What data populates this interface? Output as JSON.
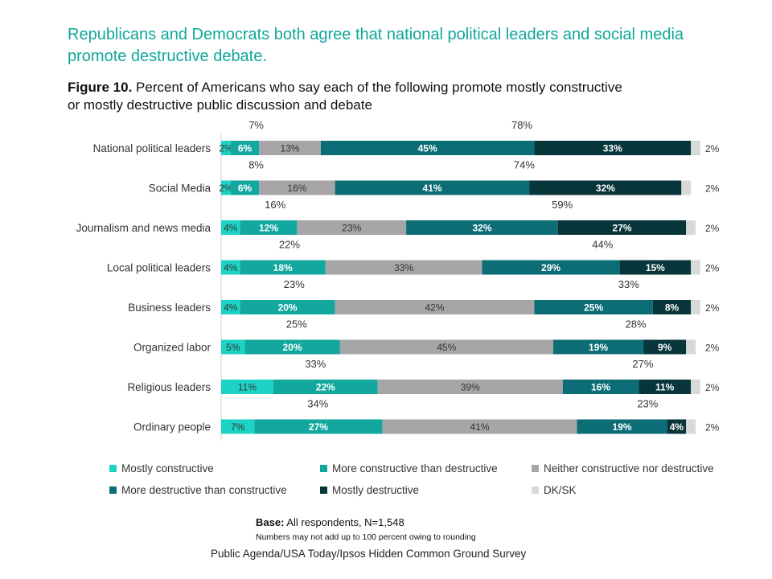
{
  "headline": "Republicans and Democrats both agree that national political leaders and social media promote destructive debate.",
  "figure_label": "Figure 10.",
  "figure_title": "Percent of Americans who say each of the following promote mostly constructive or mostly destructive public discussion and debate",
  "footer": {
    "base_label": "Base:",
    "base_text": "All respondents, N=1,548",
    "note": "Numbers may not add up to 100 percent owing to rounding",
    "source": "Public Agenda/USA Today/Ipsos Hidden Common Ground Survey"
  },
  "chart_data": {
    "type": "bar",
    "orientation": "horizontal",
    "stacked": true,
    "xlim": [
      0,
      100
    ],
    "categories": [
      "National political leaders",
      "Social Media",
      "Journalism and news media",
      "Local political leaders",
      "Business leaders",
      "Organized labor",
      "Religious leaders",
      "Ordinary people"
    ],
    "series": [
      {
        "name": "Mostly constructive",
        "color": "#1dd3c5",
        "label_color": "#333333",
        "values": [
          2,
          2,
          4,
          4,
          4,
          5,
          11,
          7
        ]
      },
      {
        "name": "More constructive than destructive",
        "color": "#12a8a0",
        "label_color": "#ffffff",
        "values": [
          6,
          6,
          12,
          18,
          20,
          20,
          22,
          27
        ]
      },
      {
        "name": "Neither constructive nor destructive",
        "color": "#a6a6a6",
        "label_color": "#333333",
        "values": [
          13,
          16,
          23,
          33,
          42,
          45,
          39,
          41
        ]
      },
      {
        "name": "More destructive than constructive",
        "color": "#0d6d77",
        "label_color": "#ffffff",
        "values": [
          45,
          41,
          32,
          29,
          25,
          19,
          16,
          19
        ]
      },
      {
        "name": "Mostly destructive",
        "color": "#07353a",
        "label_color": "#ffffff",
        "values": [
          33,
          32,
          27,
          15,
          8,
          9,
          11,
          4
        ]
      },
      {
        "name": "DK/SK",
        "color": "#d9d9d9",
        "label_color": "#333333",
        "values": [
          2,
          2,
          2,
          2,
          2,
          2,
          2,
          2
        ]
      }
    ],
    "constructive_totals": [
      "7%",
      "8%",
      "16%",
      "22%",
      "23%",
      "25%",
      "33%",
      "34%"
    ],
    "destructive_totals": [
      "78%",
      "74%",
      "59%",
      "44%",
      "33%",
      "28%",
      "27%",
      "23%"
    ],
    "legend_position": "bottom"
  }
}
